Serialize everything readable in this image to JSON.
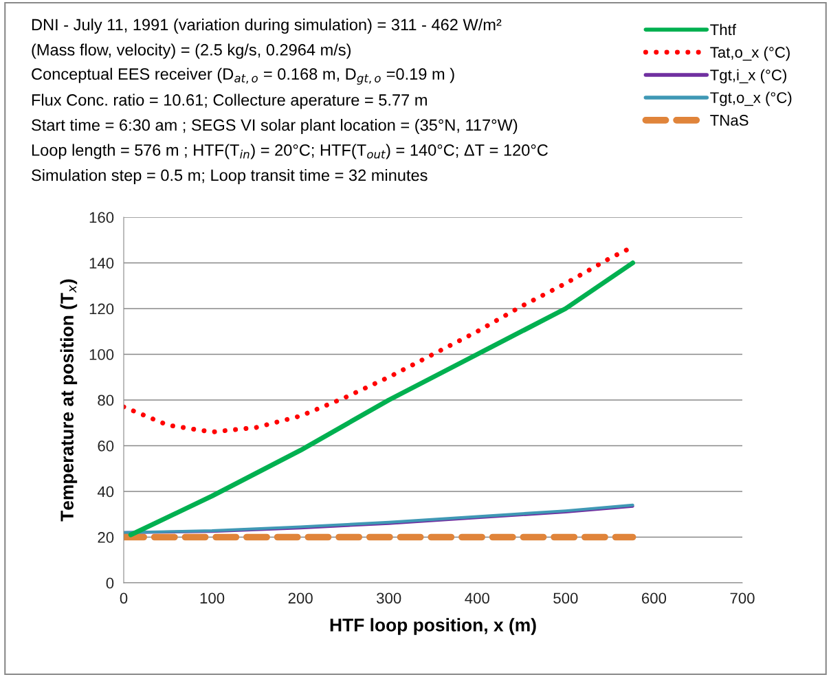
{
  "chart_data": {
    "type": "line",
    "xlabel": "HTF loop position, x (m)",
    "ylabel": "Temperature at position (T$_{x}$)",
    "annotations": [
      "DNI - July 11, 1991 (variation during simulation) = 311 - 462 W/m²",
      "(Mass flow, velocity) = (2.5 kg/s, 0.2964 m/s)",
      "Conceptual EES receiver (D$_{at,o}$ = 0.168 m, D$_{gt,o}$ =0.19 m )",
      "Flux Conc. ratio = 10.61; Collecture aperature = 5.77 m",
      "Start time = 6:30 am ; SEGS VI solar plant location = (35°N, 117°W)",
      "Loop length = 576 m ; HTF(T$_{in}$) = 20°C; HTF(T$_{out}$) = 140°C; ΔT = 120°C",
      "Simulation step = 0.5 m; Loop transit time = 32 minutes"
    ],
    "xlim": [
      0,
      700
    ],
    "xticks": [
      0,
      100,
      200,
      300,
      400,
      500,
      600,
      700
    ],
    "ylim": [
      0,
      160
    ],
    "yticks": [
      0,
      20,
      40,
      60,
      80,
      100,
      120,
      140,
      160
    ],
    "grid": "y",
    "legend": "top right",
    "marker": "none",
    "series": [
      {
        "name": "Thtf",
        "color": "#00b050",
        "line_style": "solid",
        "x": [
          8,
          100,
          200,
          300,
          400,
          500,
          576
        ],
        "values": [
          21,
          38,
          58,
          80,
          100,
          120,
          140
        ]
      },
      {
        "name": "Tat,o_x (°C)",
        "color": "#ff0000",
        "line_style": "dotted",
        "x": [
          0,
          50,
          100,
          150,
          200,
          250,
          300,
          350,
          400,
          450,
          500,
          550,
          576
        ],
        "values": [
          77,
          69,
          66,
          68,
          73,
          81,
          90,
          100,
          110,
          121,
          131,
          142,
          147
        ]
      },
      {
        "name": "Tgt,i_x (°C)",
        "color": "#7030a0",
        "line_style": "solid",
        "x": [
          0,
          100,
          200,
          300,
          400,
          500,
          576
        ],
        "values": [
          22,
          22.5,
          24,
          26,
          28.5,
          31,
          33.5
        ]
      },
      {
        "name": "Tgt,o_x (°C)",
        "color": "#3f98b5",
        "line_style": "solid",
        "x": [
          0,
          100,
          200,
          300,
          400,
          500,
          576
        ],
        "values": [
          22,
          22.8,
          24.5,
          26.5,
          29,
          31.5,
          34
        ]
      },
      {
        "name": "TNaS",
        "color": "#e0843a",
        "line_style": "dashed",
        "x": [
          0,
          100,
          200,
          300,
          400,
          500,
          576
        ],
        "values": [
          20,
          20,
          20,
          20,
          20,
          20,
          20
        ]
      }
    ]
  }
}
